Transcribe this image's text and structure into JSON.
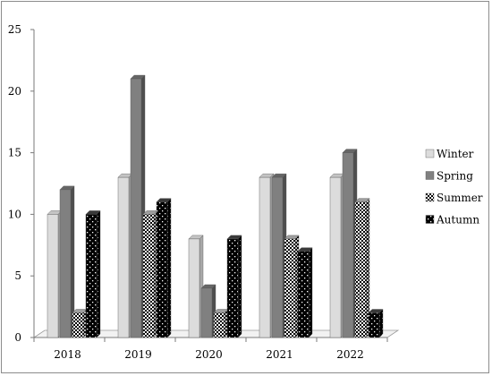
{
  "chart_data": {
    "type": "bar",
    "title": "",
    "xlabel": "",
    "ylabel": "",
    "categories": [
      "2018",
      "2019",
      "2020",
      "2021",
      "2022"
    ],
    "series": [
      {
        "name": "Winter",
        "values": [
          10,
          13,
          8,
          13,
          13
        ],
        "pattern": "light-solid"
      },
      {
        "name": "Spring",
        "values": [
          12,
          21,
          4,
          13,
          15
        ],
        "pattern": "dark-solid"
      },
      {
        "name": "Summer",
        "values": [
          2,
          10,
          2,
          8,
          11
        ],
        "pattern": "checker"
      },
      {
        "name": "Autumn",
        "values": [
          10,
          11,
          8,
          7,
          2
        ],
        "pattern": "dots"
      }
    ],
    "ylim": [
      0,
      25
    ],
    "yticks": [
      "0",
      "5",
      "10",
      "15",
      "20",
      "25"
    ],
    "grid": false,
    "legend_position": "right",
    "colors": {
      "winter_front": "#dcdcdc",
      "spring_front": "#808080",
      "summer_bg": "#ffffff",
      "autumn_bg": "#000000"
    }
  }
}
